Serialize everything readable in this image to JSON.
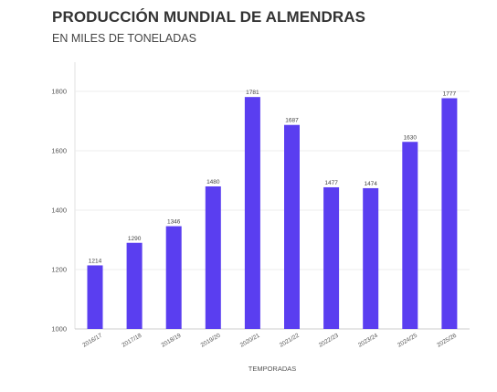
{
  "chart_data": {
    "type": "bar",
    "title": "PRODUCCIÓN MUNDIAL DE ALMENDRAS",
    "subtitle": "EN MILES DE TONELADAS",
    "xlabel": "TEMPORADAS",
    "ylabel": "",
    "categories": [
      "2016/17",
      "2017/18",
      "2018/19",
      "2019/20",
      "2020/21",
      "2021/22",
      "2022/23",
      "2023/24",
      "2024/25",
      "2025/26"
    ],
    "values": [
      1214,
      1290,
      1346,
      1480,
      1781,
      1687,
      1477,
      1474,
      1630,
      1777
    ],
    "ylim": [
      1000,
      1800
    ],
    "yticks": [
      1000,
      1200,
      1400,
      1600,
      1800
    ],
    "grid": true,
    "legend": "none",
    "bar_color": "#5a3ef0"
  }
}
